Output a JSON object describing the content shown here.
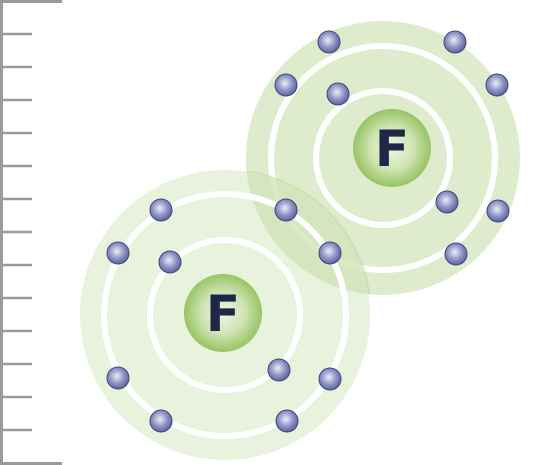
{
  "diagram": {
    "atoms": [
      {
        "symbol": "F",
        "shells": [
          {
            "electrons": 2
          },
          {
            "electrons": 7
          }
        ]
      },
      {
        "symbol": "F",
        "shells": [
          {
            "electrons": 2
          },
          {
            "electrons": 7
          }
        ]
      }
    ],
    "shared_electron_pairs": 1,
    "colors": {
      "halo": "#d8e9c4",
      "overlap": "#bcd8a1",
      "shell_ring": "#ffffff",
      "nucleus_outer": "#97c462",
      "nucleus_inner": "#eef6e3",
      "nucleus_text": "#1f2747",
      "electron_fill": "#6d74ad",
      "electron_highlight": "#eceefa",
      "electron_edge": "#3f4680",
      "ruler": "#9a9a9a"
    }
  }
}
